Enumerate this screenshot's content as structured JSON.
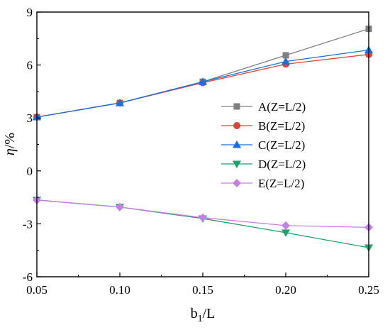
{
  "chart_data": {
    "type": "line",
    "x": [
      0.05,
      0.1,
      0.15,
      0.2,
      0.25
    ],
    "xlim": [
      0.05,
      0.25
    ],
    "ylim": [
      -6,
      9
    ],
    "xticks": [
      "0.05",
      "0.10",
      "0.15",
      "0.20",
      "0.25"
    ],
    "yticks": [
      "-6",
      "-3",
      "0",
      "3",
      "6",
      "9"
    ],
    "xlabel_main": "b",
    "xlabel_sub": "1",
    "xlabel_tail": "/L",
    "ylabel_var": "η",
    "ylabel_tail": "/%",
    "grid": false,
    "legend_position": "center-right",
    "series": [
      {
        "name": "A(Z=L/2)",
        "color": "#7f7f7f",
        "marker": "square",
        "values": [
          3.05,
          3.85,
          5.05,
          6.55,
          8.05
        ]
      },
      {
        "name": "B(Z=L/2)",
        "color": "#e8413c",
        "marker": "circle",
        "values": [
          3.05,
          3.85,
          5.0,
          6.05,
          6.6
        ]
      },
      {
        "name": "C(Z=L/2)",
        "color": "#1a6fdf",
        "marker": "triangle-up",
        "values": [
          3.05,
          3.85,
          5.05,
          6.2,
          6.85
        ]
      },
      {
        "name": "D(Z=L/2)",
        "color": "#1aa36b",
        "marker": "triangle-down",
        "values": [
          -1.65,
          -2.05,
          -2.7,
          -3.5,
          -4.35
        ]
      },
      {
        "name": "E(Z=L/2)",
        "color": "#c97ee6",
        "marker": "diamond",
        "values": [
          -1.65,
          -2.05,
          -2.65,
          -3.1,
          -3.2
        ]
      }
    ]
  }
}
